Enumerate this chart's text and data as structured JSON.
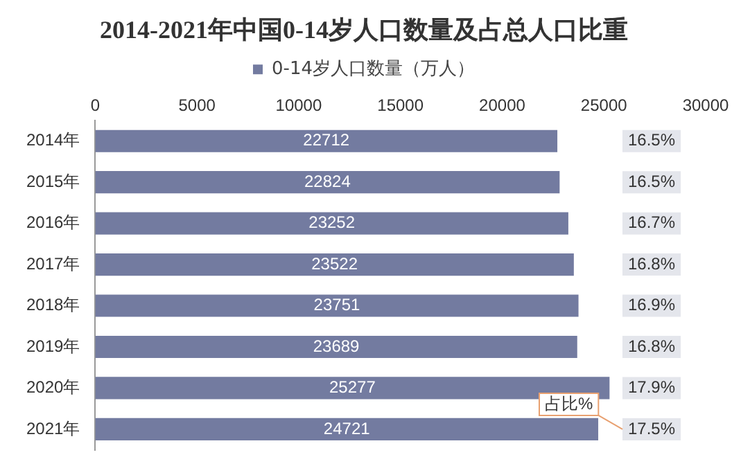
{
  "chart_data": {
    "type": "bar",
    "orientation": "horizontal",
    "title": "2014-2021年中国0-14岁人口数量及占总人口比重",
    "categories": [
      "2014年",
      "2015年",
      "2016年",
      "2017年",
      "2018年",
      "2019年",
      "2020年",
      "2021年"
    ],
    "series": [
      {
        "name": "0-14岁人口数量（万人）",
        "color": "#737ba0",
        "values": [
          22712,
          22824,
          23252,
          23522,
          23751,
          23689,
          25277,
          24721
        ]
      }
    ],
    "xlim": [
      0,
      30000
    ],
    "xticks": [
      0,
      5000,
      10000,
      15000,
      20000,
      25000,
      30000
    ],
    "data_labels": true,
    "grid": false,
    "legend": "top",
    "annotations": [
      {
        "text": "16.5%",
        "y": "2014年"
      },
      {
        "text": "16.5%",
        "y": "2015年"
      },
      {
        "text": "16.7%",
        "y": "2016年"
      },
      {
        "text": "16.8%",
        "y": "2017年"
      },
      {
        "text": "16.9%",
        "y": "2018年"
      },
      {
        "text": "16.8%",
        "y": "2019年"
      },
      {
        "text": "17.9%",
        "y": "2020年"
      },
      {
        "text": "17.5%",
        "y": "2021年"
      },
      "占比%"
    ]
  }
}
